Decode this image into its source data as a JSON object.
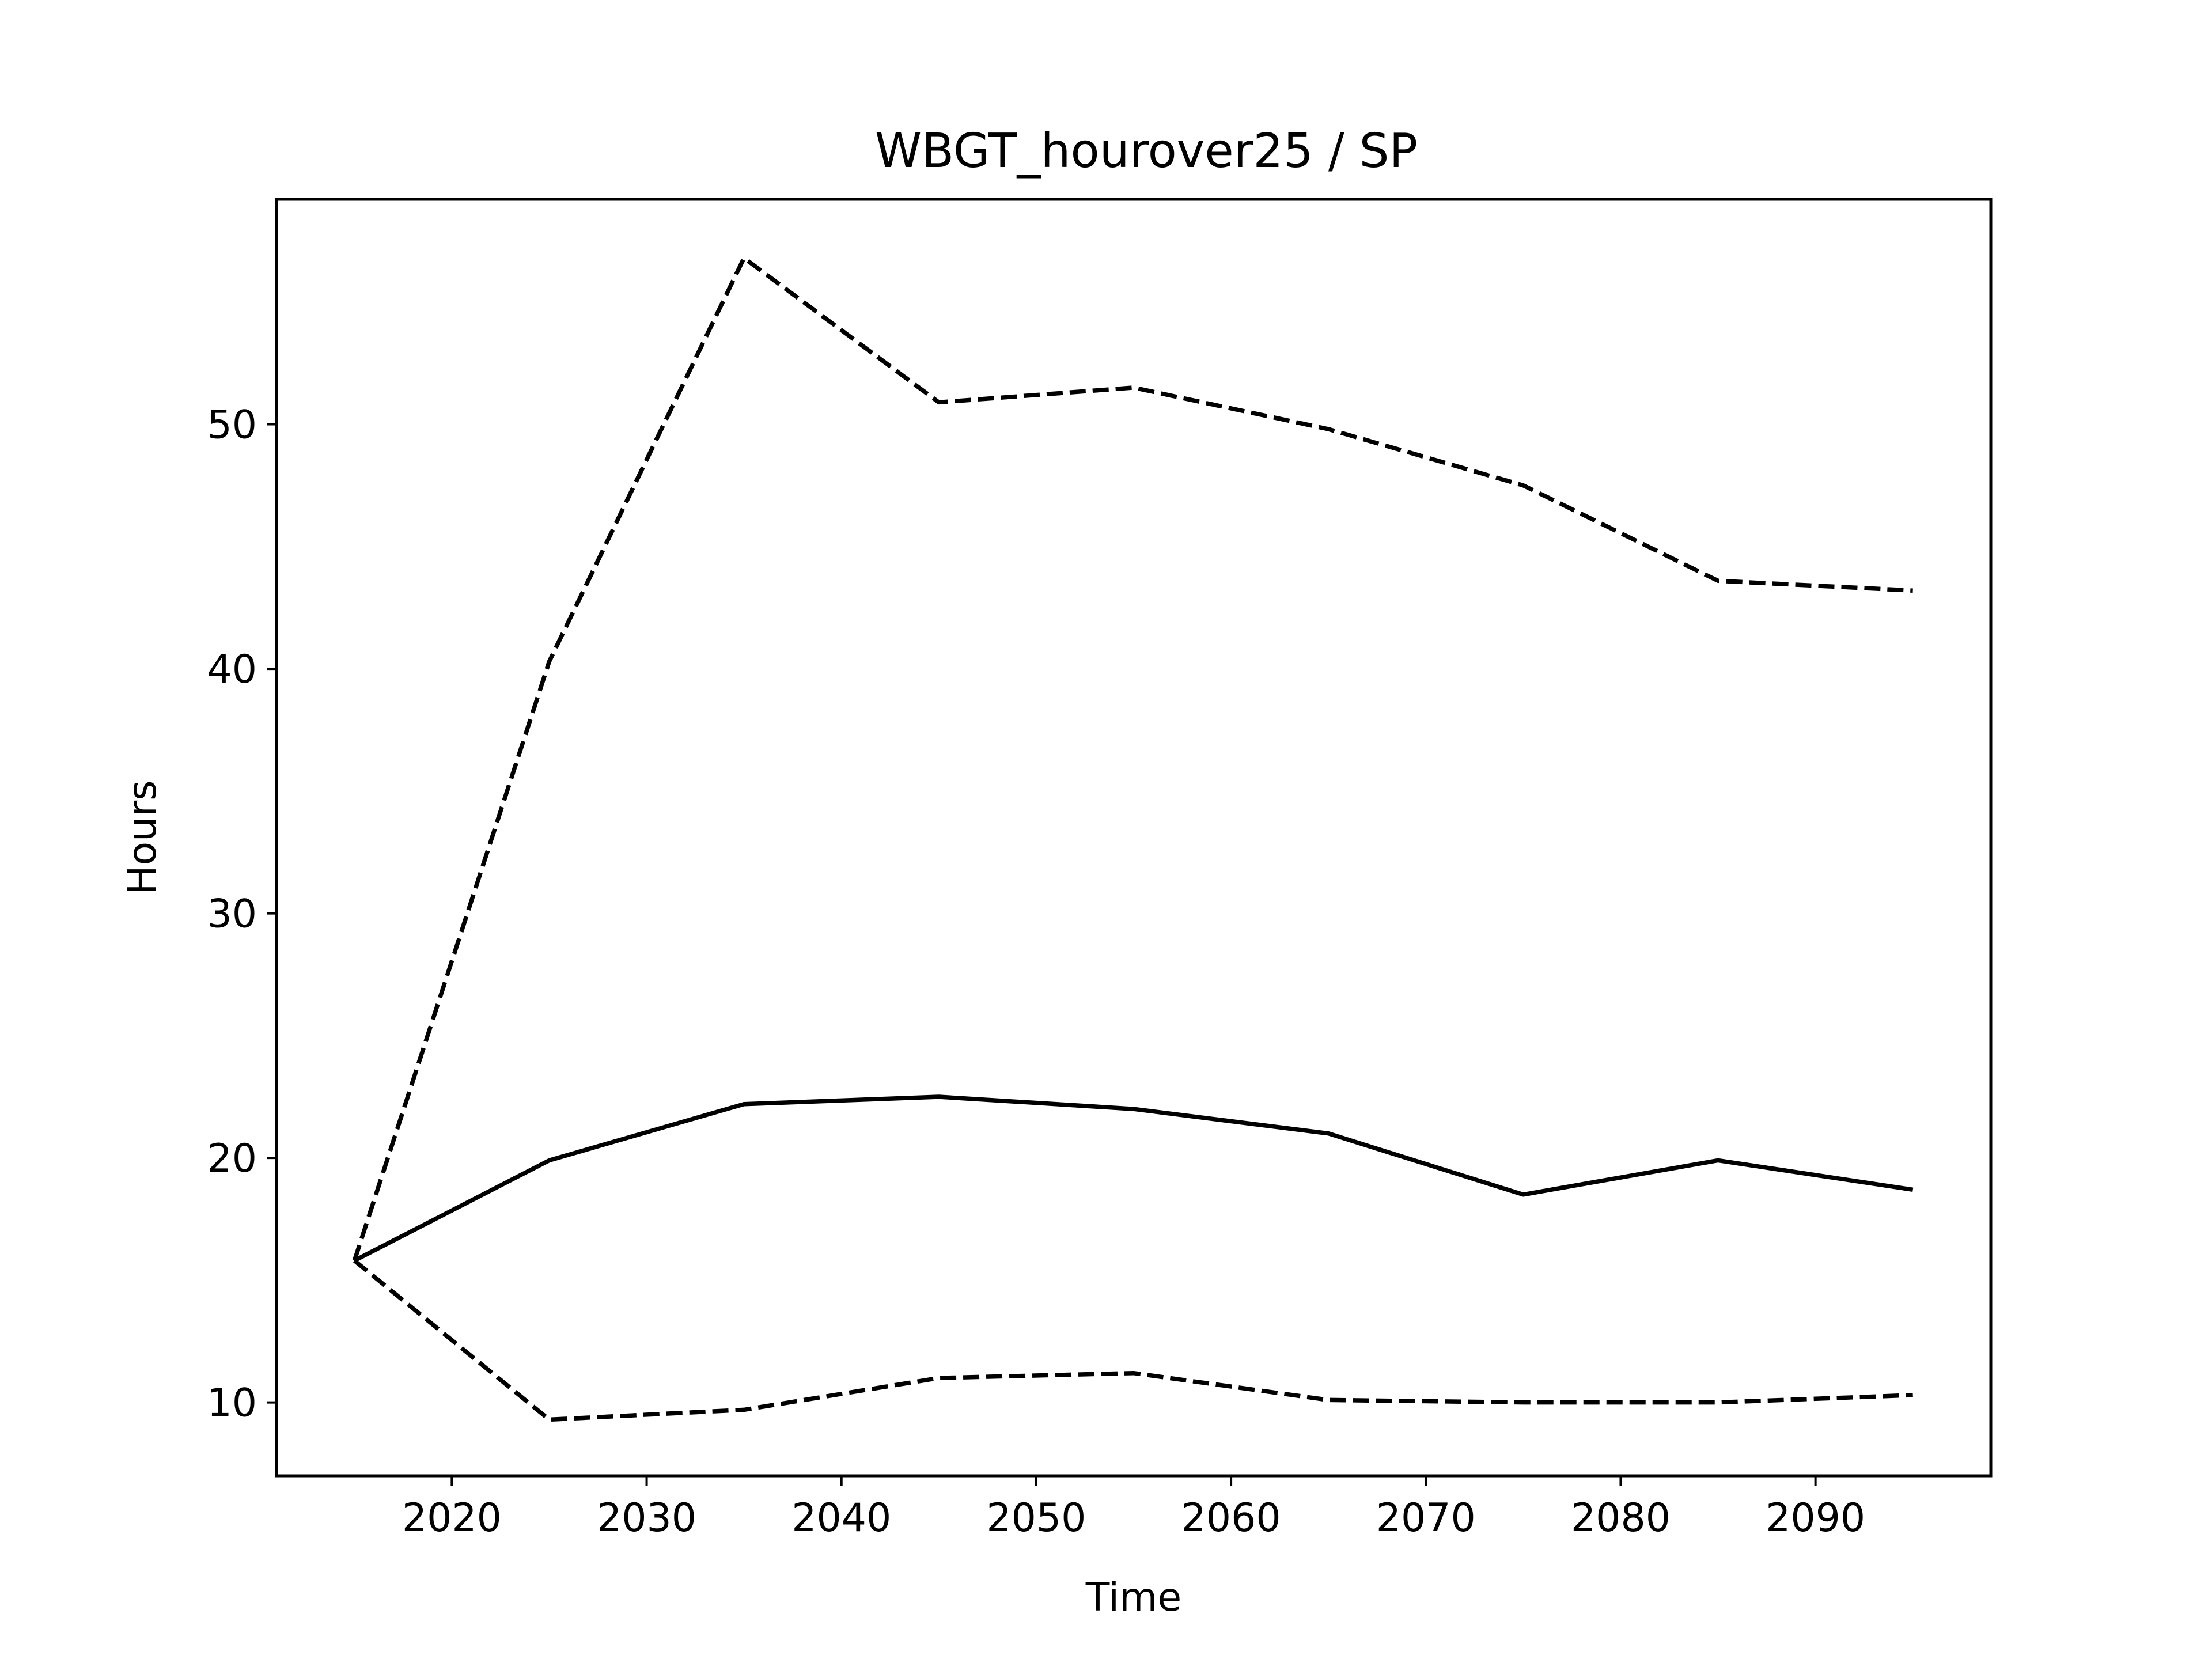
{
  "chart_data": {
    "type": "line",
    "title": "WBGT_hourover25 / SP",
    "xlabel": "Time",
    "ylabel": "Hours",
    "x": [
      2015,
      2025,
      2035,
      2045,
      2055,
      2065,
      2075,
      2085,
      2095
    ],
    "series": [
      {
        "style": "dashed",
        "color": "#000000",
        "values": [
          15.8,
          40.3,
          56.8,
          50.9,
          51.5,
          49.8,
          47.5,
          43.6,
          43.2
        ]
      },
      {
        "style": "solid",
        "color": "#000000",
        "values": [
          15.8,
          19.9,
          22.2,
          22.5,
          22.0,
          21.0,
          18.5,
          19.9,
          18.7
        ]
      },
      {
        "style": "dashed",
        "color": "#000000",
        "values": [
          15.8,
          9.3,
          9.7,
          11.0,
          11.2,
          10.1,
          10.0,
          10.0,
          10.3
        ]
      }
    ],
    "xlim": [
      2011.0,
      2099.0
    ],
    "ylim": [
      7.0,
      59.2
    ],
    "x_ticks": [
      2020,
      2030,
      2040,
      2050,
      2060,
      2070,
      2080,
      2090
    ],
    "y_ticks": [
      10,
      20,
      30,
      40,
      50
    ],
    "grid": false,
    "legend": false
  }
}
